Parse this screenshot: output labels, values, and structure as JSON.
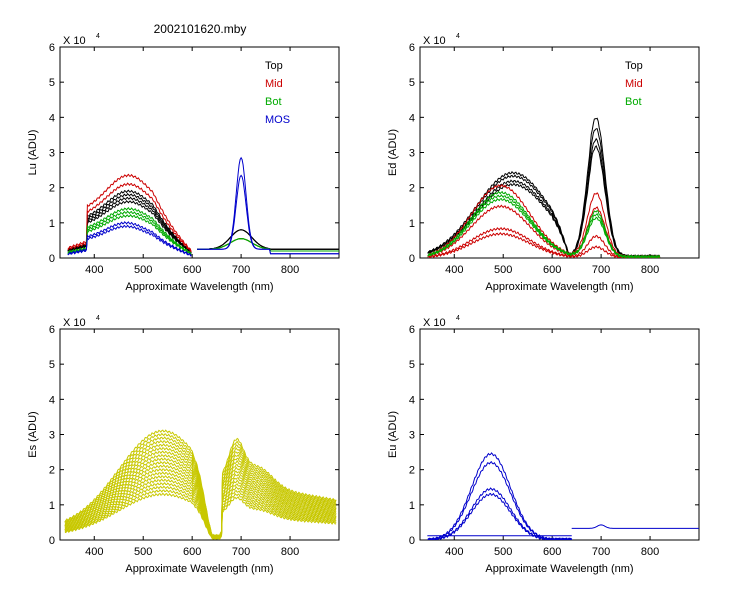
{
  "figure_title": "2002101620.mby",
  "chart_data": [
    {
      "id": "lu",
      "type": "line",
      "ylabel": "Lu (ADU)",
      "xlabel": "Approximate Wavelength (nm)",
      "multiplier_label": "X 10",
      "multiplier_exp": "4",
      "xlim": [
        330,
        900
      ],
      "ylim": [
        0,
        6
      ],
      "xticks": [
        400,
        500,
        600,
        700,
        800
      ],
      "yticks": [
        0,
        1,
        2,
        3,
        4,
        5,
        6
      ],
      "legend": [
        {
          "label": "Top",
          "color": "#000000"
        },
        {
          "label": "Mid",
          "color": "#cc0000"
        },
        {
          "label": "Bot",
          "color": "#00aa00"
        },
        {
          "label": "MOS",
          "color": "#0000cc"
        }
      ],
      "series": [
        {
          "name": "Top",
          "color": "#000000",
          "profile": "lu",
          "peaks": [
            1.9,
            1.8,
            1.7,
            1.6
          ],
          "tail": 0.25
        },
        {
          "name": "Mid",
          "color": "#cc0000",
          "profile": "lu",
          "peaks": [
            2.35,
            2.1
          ],
          "tail": 0.2
        },
        {
          "name": "Bot",
          "color": "#00aa00",
          "profile": "lu",
          "peaks": [
            1.4,
            1.3,
            1.2
          ],
          "tail": 0.2
        },
        {
          "name": "MOS",
          "color": "#0000cc",
          "profile": "lu_mos",
          "peaks": [
            1.0,
            0.9
          ],
          "peak700": [
            2.6,
            2.1
          ],
          "tail": 0.12
        }
      ]
    },
    {
      "id": "ed",
      "type": "line",
      "ylabel": "Ed  (ADU)",
      "xlabel": "Approximate Wavelength (nm)",
      "multiplier_label": "X 10",
      "multiplier_exp": "4",
      "xlim": [
        330,
        900
      ],
      "ylim": [
        0,
        6
      ],
      "xticks": [
        400,
        500,
        600,
        700,
        800
      ],
      "yticks": [
        0,
        1,
        2,
        3,
        4,
        5,
        6
      ],
      "legend": [
        {
          "label": "Top",
          "color": "#000000"
        },
        {
          "label": "Mid",
          "color": "#cc0000"
        },
        {
          "label": "Bot",
          "color": "#00aa00"
        }
      ],
      "series": [
        {
          "name": "Top",
          "color": "#000000",
          "profile": "ed_top",
          "peaks": [
            2.55,
            2.45,
            2.3,
            2.2
          ],
          "peak700": [
            3.8,
            3.5,
            3.2,
            3.0
          ]
        },
        {
          "name": "Mid",
          "color": "#cc0000",
          "profile": "ed_mid",
          "peaks": [
            2.1,
            1.5,
            0.85,
            0.7
          ],
          "peak700": [
            1.8,
            1.4,
            0.6,
            0.3
          ]
        },
        {
          "name": "Bot",
          "color": "#00aa00",
          "profile": "ed_mid",
          "peaks": [
            1.9,
            1.8,
            1.7
          ],
          "peak700": [
            1.3,
            1.2,
            1.1
          ]
        }
      ]
    },
    {
      "id": "es",
      "type": "line",
      "ylabel": "Es  (ADU)",
      "xlabel": "Approximate Wavelength (nm)",
      "multiplier_label": "X 10",
      "multiplier_exp": "4",
      "xlim": [
        330,
        900
      ],
      "ylim": [
        0,
        6
      ],
      "xticks": [
        400,
        500,
        600,
        700,
        800
      ],
      "yticks": [
        0,
        1,
        2,
        3,
        4,
        5,
        6
      ],
      "legend": [],
      "series": [
        {
          "name": "Es",
          "color": "#c8c800",
          "profile": "es",
          "peaks": [
            3.1,
            3.0,
            2.9,
            2.8,
            2.7,
            2.6,
            2.5,
            2.4,
            2.3,
            2.2,
            2.1,
            2.0,
            1.9,
            1.8,
            1.7,
            1.6,
            1.5,
            1.4,
            1.3
          ]
        }
      ]
    },
    {
      "id": "eu",
      "type": "line",
      "ylabel": "Eu  (ADU)",
      "xlabel": "Approximate Wavelength (nm)",
      "multiplier_label": "X 10",
      "multiplier_exp": "4",
      "xlim": [
        330,
        900
      ],
      "ylim": [
        0,
        6
      ],
      "xticks": [
        400,
        500,
        600,
        700,
        800
      ],
      "yticks": [
        0,
        1,
        2,
        3,
        4,
        5,
        6
      ],
      "legend": [],
      "series": [
        {
          "name": "Eu",
          "color": "#0000cc",
          "profile": "eu",
          "peaks": [
            2.45,
            2.2,
            1.45,
            1.3
          ],
          "tail": 0.33
        }
      ]
    }
  ]
}
